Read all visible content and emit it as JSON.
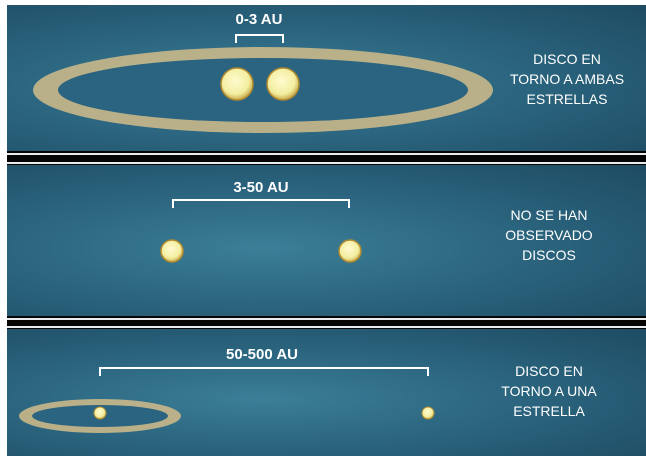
{
  "panels": [
    {
      "distance": "0-3 AU",
      "description": "DISCO EN\nTORNO A AMBAS\nESTRELLAS"
    },
    {
      "distance": "3-50 AU",
      "description": "NO SE HAN\nOBSERVADO\nDISCOS"
    },
    {
      "distance": "50-500 AU",
      "description": "DISCO EN\nTORNO A UNA\nESTRELLA"
    }
  ],
  "colors": {
    "background": "#2c6680",
    "disk": "#c9b88a",
    "star": "#f3eea0",
    "separator": "#e8ecef"
  }
}
